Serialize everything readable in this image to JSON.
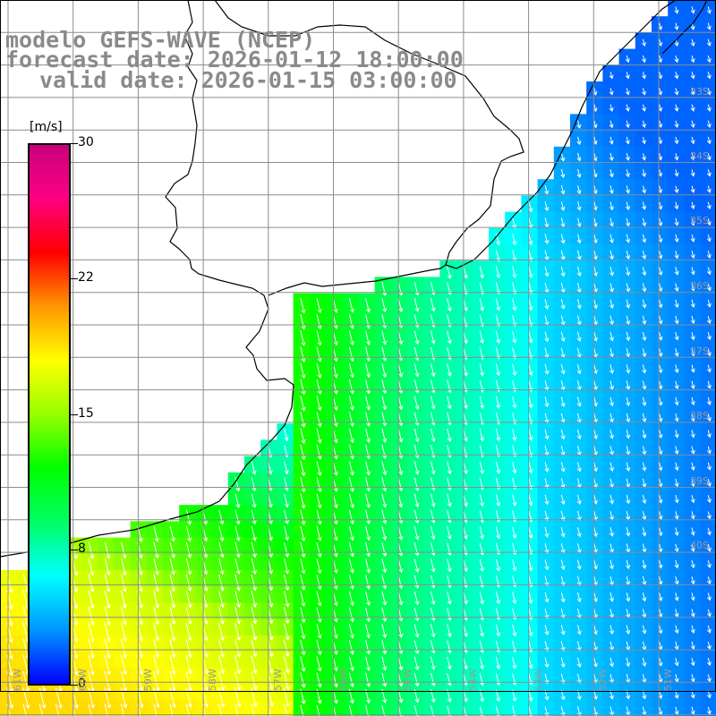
{
  "title": {
    "line1": "modelo GEFS-WAVE (NCEP)",
    "line2": "forecast date: 2026-01-12 18:00:00",
    "line3": "valid date: 2026-01-15 03:00:00"
  },
  "colorbar": {
    "unit": "[m/s]",
    "ticks": [
      "30",
      "22",
      "15",
      "8",
      "0"
    ],
    "tick_values": [
      30,
      22,
      15,
      8,
      0
    ],
    "colors": [
      "#0000ff",
      "#0096ff",
      "#00ffff",
      "#00ff64",
      "#00ff00",
      "#96ff00",
      "#ffff00",
      "#ff9600",
      "#ff0000",
      "#ff0080",
      "#c80080"
    ]
  },
  "lat_labels": [
    "33S",
    "34S",
    "35S",
    "36S",
    "37S",
    "38S",
    "39S",
    "40S"
  ],
  "lon_labels": [
    "61W",
    "60W",
    "59W",
    "58W",
    "57W",
    "56W",
    "55W",
    "54W",
    "53W",
    "52W",
    "51W"
  ],
  "colors": {
    "land": "#ffffff",
    "grid": "#8c8c8c",
    "coast": "#000000",
    "arrow": "#ffffff",
    "title": "#8a8a8a"
  }
}
